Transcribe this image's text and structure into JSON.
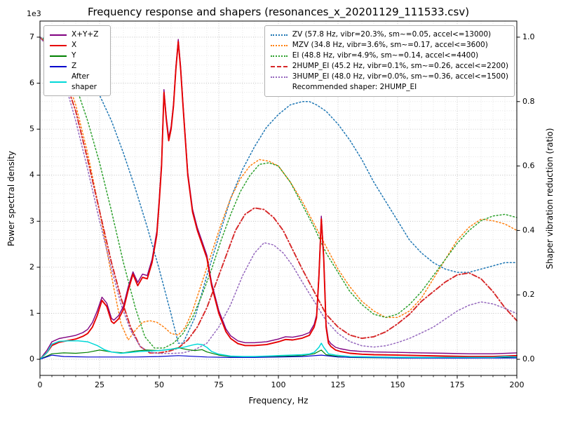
{
  "figure": {
    "title": "Frequency response and shapers (resonances_x_20201129_111533.csv)",
    "xlabel": "Frequency, Hz",
    "ylabel_left": "Power spectral density",
    "ylabel_right": "Shaper vibration reduction (ratio)",
    "offset_text": "1e3",
    "background": "#ffffff"
  },
  "chart_data": {
    "type": "line",
    "xlim": [
      0,
      200
    ],
    "x_ticks": [
      0,
      25,
      50,
      75,
      100,
      125,
      150,
      175,
      200
    ],
    "x_minor_step": 5,
    "ylim_left": [
      -350,
      7350
    ],
    "y_left_ticks": [
      0,
      1000,
      2000,
      3000,
      4000,
      5000,
      6000,
      7000
    ],
    "y_left_tick_labels": [
      "0",
      "1",
      "2",
      "3",
      "4",
      "5",
      "6",
      "7"
    ],
    "y_left_minor_step": 200,
    "ylim_right": [
      -0.05,
      1.05
    ],
    "y_right_ticks": [
      0,
      0.2,
      0.4,
      0.6,
      0.8,
      1.0
    ],
    "y_right_tick_labels": [
      "0.0",
      "0.2",
      "0.4",
      "0.6",
      "0.8",
      "1.0"
    ],
    "grid": {
      "minor_color": "#dcdcdc",
      "major_color": "#b8b8b8"
    },
    "psd_series": [
      {
        "name": "sum",
        "label": "X+Y+Z",
        "color": "#800080",
        "style": "solid",
        "width": 1.4,
        "axis": "left",
        "x": [
          0,
          3,
          5,
          8,
          10,
          13,
          15,
          18,
          20,
          22,
          24,
          26,
          28,
          30,
          31,
          33,
          35,
          37,
          39,
          41,
          43,
          45,
          47,
          49,
          50,
          51,
          52,
          53,
          54,
          55,
          56,
          57,
          58,
          59,
          60,
          62,
          64,
          66,
          68,
          70,
          72,
          75,
          78,
          80,
          83,
          86,
          90,
          95,
          100,
          103,
          106,
          110,
          113,
          115,
          116,
          117,
          118,
          119,
          120,
          121,
          122,
          124,
          126,
          130,
          135,
          140,
          150,
          160,
          170,
          180,
          190,
          200
        ],
        "y": [
          0,
          200,
          380,
          450,
          470,
          500,
          520,
          580,
          650,
          800,
          1050,
          1350,
          1220,
          890,
          850,
          950,
          1150,
          1570,
          1900,
          1670,
          1850,
          1820,
          2170,
          2780,
          3480,
          4280,
          5860,
          5260,
          4820,
          5060,
          5560,
          6360,
          6950,
          6360,
          5560,
          4060,
          3260,
          2860,
          2560,
          2260,
          1660,
          1060,
          660,
          510,
          400,
          360,
          360,
          380,
          440,
          490,
          480,
          520,
          580,
          760,
          960,
          1860,
          3110,
          2260,
          760,
          410,
          340,
          260,
          230,
          190,
          170,
          160,
          150,
          140,
          130,
          120,
          120,
          140
        ]
      },
      {
        "name": "x",
        "label": "X",
        "color": "#e60000",
        "style": "solid",
        "width": 1.9,
        "axis": "left",
        "x": [
          0,
          3,
          5,
          8,
          10,
          13,
          15,
          18,
          20,
          22,
          24,
          26,
          28,
          30,
          31,
          33,
          35,
          37,
          39,
          41,
          43,
          45,
          47,
          49,
          50,
          51,
          52,
          53,
          54,
          55,
          56,
          57,
          58,
          59,
          60,
          62,
          64,
          66,
          68,
          70,
          72,
          75,
          78,
          80,
          83,
          86,
          90,
          95,
          100,
          103,
          106,
          110,
          113,
          115,
          116,
          117,
          118,
          119,
          120,
          121,
          122,
          124,
          126,
          130,
          135,
          140,
          150,
          160,
          170,
          180,
          190,
          200
        ],
        "y": [
          0,
          150,
          300,
          370,
          390,
          420,
          440,
          500,
          560,
          700,
          950,
          1280,
          1150,
          820,
          780,
          880,
          1080,
          1500,
          1850,
          1600,
          1780,
          1750,
          2100,
          2700,
          3400,
          4200,
          5800,
          5200,
          4750,
          5000,
          5500,
          6300,
          6900,
          6300,
          5500,
          4000,
          3200,
          2800,
          2500,
          2200,
          1600,
          1000,
          600,
          450,
          340,
          300,
          300,
          320,
          380,
          430,
          420,
          460,
          520,
          700,
          900,
          1800,
          3050,
          2200,
          700,
          350,
          280,
          200,
          170,
          130,
          110,
          100,
          90,
          80,
          70,
          60,
          60,
          80
        ]
      },
      {
        "name": "y",
        "label": "Y",
        "color": "#008000",
        "style": "solid",
        "width": 1.2,
        "axis": "left",
        "x": [
          0,
          5,
          10,
          15,
          20,
          25,
          30,
          35,
          40,
          45,
          50,
          55,
          58,
          62,
          65,
          68,
          70,
          75,
          80,
          90,
          100,
          110,
          115,
          118,
          120,
          125,
          130,
          150,
          175,
          200
        ],
        "y": [
          0,
          120,
          140,
          130,
          150,
          200,
          160,
          140,
          180,
          200,
          190,
          220,
          250,
          210,
          190,
          210,
          160,
          90,
          60,
          50,
          60,
          80,
          120,
          200,
          100,
          60,
          40,
          30,
          30,
          40
        ]
      },
      {
        "name": "z",
        "label": "Z",
        "color": "#0000cc",
        "style": "solid",
        "width": 1.2,
        "axis": "left",
        "x": [
          0,
          5,
          10,
          20,
          30,
          40,
          50,
          58,
          70,
          80,
          90,
          100,
          110,
          118,
          125,
          150,
          175,
          200
        ],
        "y": [
          0,
          90,
          60,
          50,
          50,
          50,
          60,
          80,
          50,
          40,
          40,
          50,
          60,
          90,
          50,
          30,
          25,
          30
        ]
      },
      {
        "name": "after_shaper",
        "label": "After shaper",
        "color": "#00d8d8",
        "style": "solid",
        "width": 1.5,
        "axis": "left",
        "x": [
          0,
          3,
          5,
          8,
          12,
          16,
          20,
          24,
          27,
          30,
          34,
          38,
          42,
          46,
          50,
          54,
          58,
          61,
          64,
          66,
          68,
          70,
          72,
          75,
          80,
          85,
          90,
          95,
          100,
          105,
          110,
          113,
          115,
          117,
          118,
          119,
          121,
          124,
          130,
          140,
          150,
          160,
          170,
          180,
          190,
          195,
          200
        ],
        "y": [
          0,
          150,
          330,
          390,
          400,
          400,
          380,
          300,
          210,
          160,
          130,
          150,
          170,
          180,
          190,
          210,
          240,
          270,
          310,
          330,
          320,
          260,
          170,
          110,
          70,
          60,
          60,
          70,
          80,
          90,
          100,
          115,
          150,
          260,
          350,
          260,
          120,
          90,
          60,
          50,
          45,
          40,
          40,
          40,
          40,
          60,
          50
        ]
      }
    ],
    "shaper_series": [
      {
        "name": "ZV",
        "label": "ZV (57.8 Hz, vibr=20.3%, sm~=0.05, accel<=13000)",
        "color": "#1f77b4",
        "style": "dotted",
        "width": 1.5,
        "axis": "right",
        "x": [
          0,
          5,
          10,
          15,
          20,
          25,
          30,
          35,
          40,
          45,
          50,
          55,
          58,
          60,
          65,
          70,
          75,
          80,
          85,
          90,
          95,
          100,
          105,
          110,
          113,
          116,
          120,
          125,
          130,
          135,
          140,
          145,
          150,
          155,
          160,
          165,
          170,
          175,
          180,
          185,
          190,
          195,
          200
        ],
        "y": [
          1.0,
          0.99,
          0.97,
          0.93,
          0.88,
          0.82,
          0.74,
          0.64,
          0.53,
          0.41,
          0.28,
          0.14,
          0.05,
          0.05,
          0.13,
          0.26,
          0.38,
          0.5,
          0.59,
          0.66,
          0.72,
          0.76,
          0.79,
          0.8,
          0.8,
          0.79,
          0.77,
          0.73,
          0.68,
          0.62,
          0.55,
          0.49,
          0.43,
          0.37,
          0.33,
          0.3,
          0.28,
          0.27,
          0.27,
          0.28,
          0.29,
          0.3,
          0.3
        ]
      },
      {
        "name": "MZV",
        "label": "MZV (34.8 Hz, vibr=3.6%, sm~=0.17, accel<=3600)",
        "color": "#ff7f0e",
        "style": "dotted",
        "width": 1.5,
        "axis": "right",
        "x": [
          0,
          5,
          10,
          15,
          20,
          25,
          28,
          31,
          34,
          37,
          40,
          43,
          46,
          49,
          52,
          55,
          58,
          61,
          64,
          68,
          72,
          76,
          80,
          84,
          88,
          92,
          96,
          100,
          105,
          110,
          115,
          120,
          125,
          130,
          135,
          140,
          145,
          150,
          155,
          160,
          165,
          170,
          175,
          180,
          185,
          190,
          195,
          200
        ],
        "y": [
          1.0,
          0.97,
          0.9,
          0.79,
          0.64,
          0.46,
          0.34,
          0.22,
          0.11,
          0.06,
          0.09,
          0.115,
          0.12,
          0.115,
          0.1,
          0.08,
          0.075,
          0.1,
          0.15,
          0.24,
          0.33,
          0.42,
          0.5,
          0.56,
          0.6,
          0.62,
          0.615,
          0.6,
          0.55,
          0.49,
          0.42,
          0.35,
          0.28,
          0.225,
          0.18,
          0.15,
          0.13,
          0.13,
          0.15,
          0.19,
          0.25,
          0.31,
          0.37,
          0.41,
          0.435,
          0.43,
          0.42,
          0.4
        ]
      },
      {
        "name": "EI",
        "label": "EI (48.8 Hz, vibr=4.9%, sm~=0.14, accel<=4400)",
        "color": "#2ca02c",
        "style": "dotted",
        "width": 1.5,
        "axis": "right",
        "x": [
          0,
          5,
          10,
          15,
          20,
          25,
          30,
          35,
          40,
          44,
          48,
          52,
          56,
          60,
          64,
          68,
          72,
          76,
          80,
          84,
          88,
          92,
          96,
          100,
          105,
          110,
          115,
          120,
          125,
          130,
          135,
          140,
          145,
          150,
          155,
          160,
          165,
          170,
          175,
          180,
          185,
          190,
          195,
          200
        ],
        "y": [
          1.0,
          0.98,
          0.93,
          0.85,
          0.74,
          0.61,
          0.46,
          0.3,
          0.16,
          0.07,
          0.035,
          0.035,
          0.05,
          0.08,
          0.13,
          0.2,
          0.28,
          0.37,
          0.45,
          0.52,
          0.57,
          0.605,
          0.61,
          0.6,
          0.55,
          0.48,
          0.41,
          0.33,
          0.27,
          0.21,
          0.17,
          0.14,
          0.13,
          0.14,
          0.17,
          0.21,
          0.26,
          0.31,
          0.36,
          0.4,
          0.43,
          0.445,
          0.45,
          0.44
        ]
      },
      {
        "name": "2HUMP_EI",
        "label": "2HUMP_EI (45.2 Hz, vibr=0.1%, sm~=0.26, accel<=2200)",
        "color": "#d62728",
        "style": "dashdot",
        "width": 1.9,
        "axis": "right",
        "x": [
          0,
          5,
          10,
          15,
          20,
          25,
          30,
          34,
          38,
          42,
          46,
          50,
          54,
          58,
          62,
          66,
          70,
          74,
          78,
          82,
          86,
          90,
          94,
          98,
          102,
          106,
          110,
          115,
          120,
          125,
          130,
          135,
          140,
          145,
          150,
          155,
          160,
          165,
          170,
          175,
          180,
          185,
          190,
          195,
          200
        ],
        "y": [
          1.0,
          0.96,
          0.88,
          0.77,
          0.62,
          0.46,
          0.3,
          0.19,
          0.1,
          0.04,
          0.02,
          0.02,
          0.025,
          0.035,
          0.06,
          0.1,
          0.16,
          0.24,
          0.32,
          0.4,
          0.45,
          0.47,
          0.465,
          0.44,
          0.4,
          0.34,
          0.28,
          0.21,
          0.14,
          0.1,
          0.075,
          0.065,
          0.07,
          0.085,
          0.11,
          0.14,
          0.18,
          0.21,
          0.24,
          0.262,
          0.268,
          0.25,
          0.21,
          0.16,
          0.12
        ]
      },
      {
        "name": "3HUMP_EI",
        "label": "3HUMP_EI (48.0 Hz, vibr=0.0%, sm~=0.36, accel<=1500)",
        "color": "#9467bd",
        "style": "dotted",
        "width": 1.5,
        "axis": "right",
        "x": [
          0,
          5,
          10,
          15,
          20,
          25,
          30,
          34,
          38,
          42,
          46,
          50,
          55,
          60,
          65,
          70,
          75,
          80,
          85,
          90,
          94,
          98,
          102,
          106,
          110,
          115,
          120,
          125,
          130,
          135,
          140,
          145,
          150,
          155,
          160,
          165,
          170,
          175,
          180,
          185,
          190,
          195,
          200
        ],
        "y": [
          1.0,
          0.95,
          0.87,
          0.74,
          0.59,
          0.43,
          0.28,
          0.17,
          0.09,
          0.04,
          0.022,
          0.018,
          0.018,
          0.02,
          0.03,
          0.05,
          0.1,
          0.17,
          0.26,
          0.33,
          0.362,
          0.355,
          0.33,
          0.29,
          0.24,
          0.18,
          0.12,
          0.08,
          0.055,
          0.042,
          0.038,
          0.042,
          0.052,
          0.065,
          0.082,
          0.1,
          0.125,
          0.15,
          0.168,
          0.178,
          0.172,
          0.158,
          0.142
        ]
      }
    ],
    "recommended_note": "Recommended shaper: 2HUMP_EI"
  }
}
